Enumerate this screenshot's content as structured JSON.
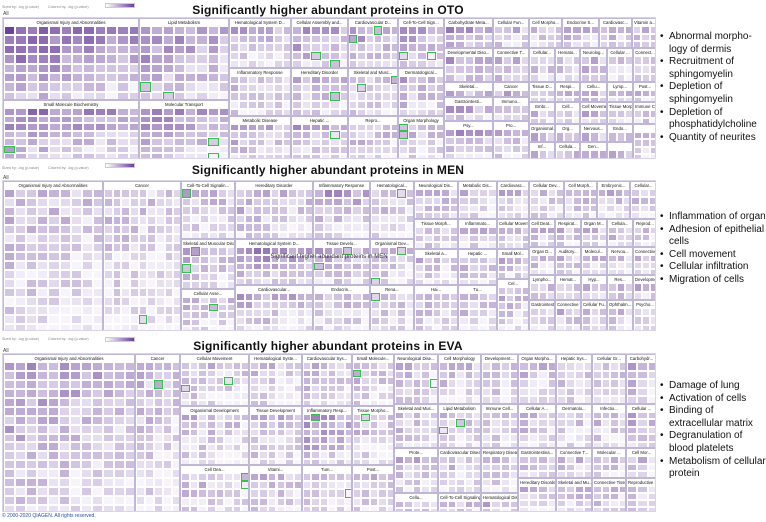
{
  "colors": {
    "light": "#f7f4fc",
    "dark": "#5d2d8f",
    "highlight": "#35c24a"
  },
  "legend": {
    "sized": "Sized by: -log (p-value)",
    "colored": "Colored by: -log (p-value)"
  },
  "all_label": "All",
  "copyright": "© 2000-2020 QIAGEN. All rights reserved.",
  "panels": [
    {
      "title": "Significantly higher abundant proteins in OTO",
      "center_text": "",
      "bullets": [
        "Abnormal morpho-logy of dermis",
        "Recruitment of sphingomyelin",
        "Depletion of sphingomyelin",
        "Depletion of phosphatidylcholine",
        "Quantity of neurites"
      ]
    },
    {
      "title": "Significantly higher abundant proteins in MEN",
      "center_text": "Significant higher abundant proteins in MEN",
      "bullets": [
        "Inflammation of organ",
        "Adhesion of epithelial cells",
        "Cell movement",
        "Cellular infiltration",
        "Migration of cells"
      ]
    },
    {
      "title": "Significantly higher abundant proteins in EVA",
      "center_text": "",
      "bullets": [
        "Damage of lung",
        "Activation of cells",
        "Binding of extracellular matrix",
        "Degranulation of blood platelets",
        "Metabolism of cellular protein"
      ]
    }
  ],
  "chart_data": [
    {
      "type": "treemap",
      "title": "Significantly higher abundant proteins in OTO",
      "size_metric": "-log (p-value)",
      "color_metric": "-log (p-value)",
      "categories": [
        "Organismal Injury and Abnormalities",
        "Lipid Metabolism",
        "Hematological System D...",
        "Cellular Assembly and...",
        "Cardiovascular D...",
        "Cell-To-Cell Sign...",
        "Carbohydrate Meta...",
        "Cellular Fun...",
        "Cell Morpho...",
        "Endocrine S...",
        "Cardiovasc...",
        "Vitamin a...",
        "Small Molecule Biochemistry",
        "Molecular Transport",
        "Inflammatory Response",
        "Hereditary Disorder",
        "Skeletal and Musc...",
        "Dermatological...",
        "Developmental Diso...",
        "Connective T...",
        "Cellular...",
        "Hemato...",
        "Neurolog...",
        "Cellular ...",
        "Connect...",
        "Tissue D...",
        "Respi...",
        "Cellu...",
        "Lymp...",
        "Post...",
        "Skeletal...",
        "Cancer",
        "Gastrointesti...",
        "Immuno...",
        "Embr...",
        "Cell...",
        "Cell Movement",
        "Tissue Morphology",
        "Immune Cell Traff...",
        "Metabolic Disease",
        "Hepatic ...",
        "Repro...",
        "Organ Morphology",
        "Organismal...",
        "Org...",
        "Psy...",
        "Pro...",
        "Nervous...",
        "Endo...",
        "Inf...",
        "Cellula...",
        "Gen..."
      ]
    },
    {
      "type": "treemap",
      "title": "Significantly higher abundant proteins in MEN",
      "size_metric": "-log (p-value)",
      "color_metric": "-log (p-value)",
      "categories": [
        "Organismal Injury and Abnormalities",
        "Cancer",
        "Cell-To-Cell Signalin...",
        "Hereditary Disorder",
        "Inflammatory Response",
        "Hematological...",
        "Neurological Dis...",
        "Metabolic Dis...",
        "Cardiovasc...",
        "Cellular Dev...",
        "Cell Morph...",
        "Embryonic...",
        "Cellular...",
        "Cellular Movement",
        "Hematological System D...",
        "Tissue Develo...",
        "Organismal Dev...",
        "Tissue Morph...",
        "Inflammato...",
        "Cell Deat...",
        "Respirat...",
        "Organ M...",
        "Cellula...",
        "Reprod...",
        "Small Mol...",
        "Organ D...",
        "Auditory...",
        "Molecul...",
        "Nervou...",
        "Connective Tissue D...",
        "Skeletal and Muscular Disorders",
        "Cellular Asse...",
        "Skeletal a...",
        "Hepatic ...",
        "Lympho...",
        "Hemat...",
        "Hyp...",
        "Res...",
        "Developmental Disorder",
        "Cardiovascular...",
        "Endocrin...",
        "Rena...",
        "Hai...",
        "Tu...",
        "Cel...",
        "Gastrointestinal Disease",
        "Connective T...",
        "Cellular Fu...",
        "Ophthalm...",
        "Psycho...",
        "Vit...",
        "Cel...",
        "Immunological Di...",
        "Dermatolo...",
        "Carboh...",
        "Renal ...",
        "Po...",
        "Fr..."
      ]
    },
    {
      "type": "treemap",
      "title": "Significantly higher abundant proteins in EVA",
      "size_metric": "-log (p-value)",
      "color_metric": "-log (p-value)",
      "categories": [
        "Organismal Injury and Abnormalities",
        "Cancer",
        "Cellular Movement",
        "Hematological Syste...",
        "Cardiovascular Sys...",
        "Small Molecule...",
        "Neurological Dise...",
        "Cell Morphology",
        "Development...",
        "Organ Morpho...",
        "Hepatic Sys...",
        "Cellular Gr...",
        "Carbohydr...",
        "Organismal Development",
        "Tissue Development",
        "Inflammatory Resp...",
        "Tissue Morpho...",
        "Skeletal and Mus...",
        "Lipid Metabolism",
        "Immune Cell...",
        "Cellular A...",
        "Dermatolo...",
        "Infectio...",
        "Cellular ...",
        "Prote...",
        "Cardiovascular Disease",
        "Respiratory Disease",
        "Gastrointestina...",
        "Connective T...",
        "Molecular ...",
        "Cell Mor...",
        "Cell Dea...",
        "Vitami...",
        "Tum...",
        "Post...",
        "Cellu...",
        "Cell-To-Cell Signaling and ...",
        "Hematological Disease",
        "Hereditary Disorder",
        "Skeletal and Mu...",
        "Connective Tissu...",
        "Reproductive S...",
        "Cellular Func...",
        "Metabolic ...",
        "Immuno...",
        "Renal a...",
        "Rep...",
        "Dru...",
        "Fr...",
        "Embryonic...",
        "Inflamm...",
        "Ophtha...",
        "Cell...",
        "End...",
        "Vis...",
        "C..."
      ]
    }
  ]
}
